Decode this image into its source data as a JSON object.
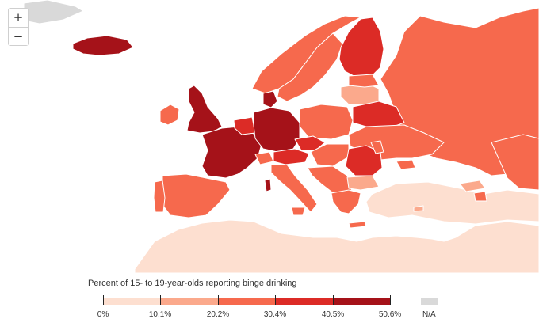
{
  "zoom": {
    "in_label": "+",
    "out_label": "−"
  },
  "legend": {
    "title": "Percent of 15- to 19-year-olds reporting binge drinking",
    "ticks": [
      "0%",
      "10.1%",
      "20.2%",
      "30.4%",
      "40.5%",
      "50.6%"
    ],
    "bins": [
      "#fddfd0",
      "#fba98c",
      "#f6694d",
      "#dc2b26",
      "#a51219"
    ],
    "na_label": "N/A",
    "na_color": "#d9d9d9"
  },
  "colors": {
    "background": "#ffffff",
    "border": "#ffffff",
    "bin1": "#fddfd0",
    "bin2": "#fba98c",
    "bin3": "#f6694d",
    "bin4": "#dc2b26",
    "bin5": "#a51219",
    "na": "#d9d9d9"
  }
}
